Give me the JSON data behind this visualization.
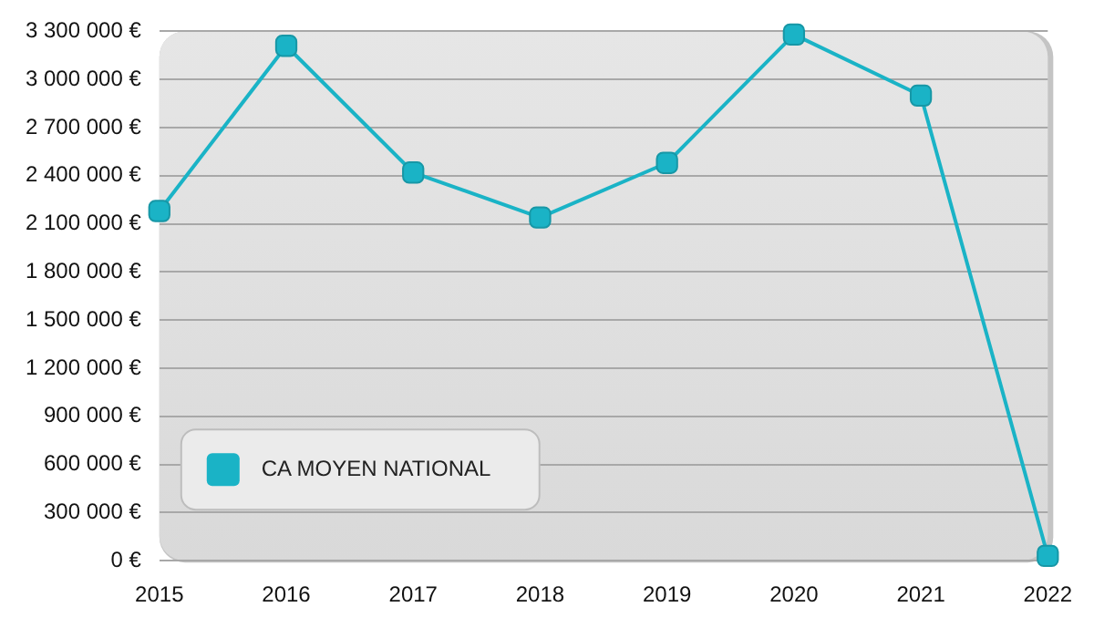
{
  "chart_data": {
    "type": "line",
    "categories": [
      "2015",
      "2016",
      "2017",
      "2018",
      "2019",
      "2020",
      "2021",
      "2022"
    ],
    "series": [
      {
        "name": "CA MOYEN NATIONAL",
        "color": "#1ab3c6",
        "values": [
          2180000,
          3210000,
          2420000,
          2140000,
          2480000,
          3280000,
          2900000,
          30000
        ]
      }
    ],
    "ylim": [
      0,
      3300000
    ],
    "yticks": [
      {
        "value": 0,
        "label": "0 €"
      },
      {
        "value": 300000,
        "label": "300 000 €"
      },
      {
        "value": 600000,
        "label": "600 000 €"
      },
      {
        "value": 900000,
        "label": "900 000 €"
      },
      {
        "value": 1200000,
        "label": "1 200 000 €"
      },
      {
        "value": 1500000,
        "label": "1 500 000 €"
      },
      {
        "value": 1800000,
        "label": "1 800 000 €"
      },
      {
        "value": 2100000,
        "label": "2 100 000 €"
      },
      {
        "value": 2400000,
        "label": "2 400 000 €"
      },
      {
        "value": 2700000,
        "label": "2 700 000 €"
      },
      {
        "value": 3000000,
        "label": "3 000 000 €"
      },
      {
        "value": 3300000,
        "label": "3 300 000 €"
      }
    ],
    "grid": "y",
    "legend": "bottom left",
    "marker": "square",
    "line_style": "solid"
  }
}
